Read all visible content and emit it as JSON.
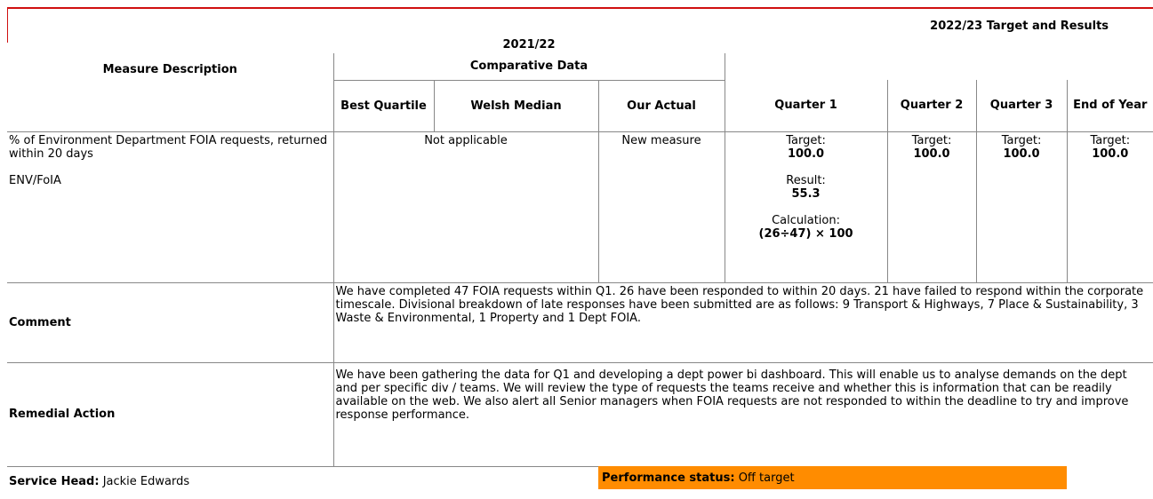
{
  "header": {
    "period_comparative": "2021/22",
    "period_target": "2022/23 Target and Results",
    "comparative": "Comparative Data",
    "columns": [
      "Measure Description",
      "Best Quartile",
      "Welsh Median",
      "Our Actual",
      "Quarter 1",
      "Quarter 2",
      "Quarter 3",
      "End of Year"
    ]
  },
  "measure": {
    "description": "% of Environment Department FOIA requests, returned within 20 days",
    "code": "ENV/FoIA",
    "comparative": "Not applicable",
    "actual": "New measure",
    "quarters": [
      {
        "target_label": "Target:",
        "target": "100.0",
        "result_label": "Result:",
        "result": "55.3",
        "calculation_label": "Calculation:",
        "calculation": "(26÷47) × 100"
      },
      {
        "target_label": "Target:",
        "target": "100.0"
      },
      {
        "target_label": "Target:",
        "target": "100.0"
      },
      {
        "target_label": "Target:",
        "target": "100.0"
      }
    ]
  },
  "comment": {
    "label": "Comment",
    "text": "We have completed 47 FOIA requests within Q1. 26 have been responded to within 20 days. 21 have failed to respond within the corporate timescale. Divisional breakdown of late responses have been submitted are as follows: 9 Transport & Highways, 7 Place & Sustainability, 3 Waste & Environmental, 1 Property and 1 Dept FOIA."
  },
  "remedial": {
    "label": "Remedial Action",
    "text": "We have been gathering the data for Q1 and developing a dept power bi dashboard. This will enable us to analyse demands on the dept and per specific div / teams. We will review the type of requests the teams receive and whether this is information that can be readily available on the web. We also alert all Senior managers when FOIA requests are not responded to within the deadline to try and improve response performance."
  },
  "footer": {
    "service_head_label": "Service Head:",
    "service_head": "Jackie Edwards",
    "status_label": "Performance status:",
    "status": "Off target"
  }
}
